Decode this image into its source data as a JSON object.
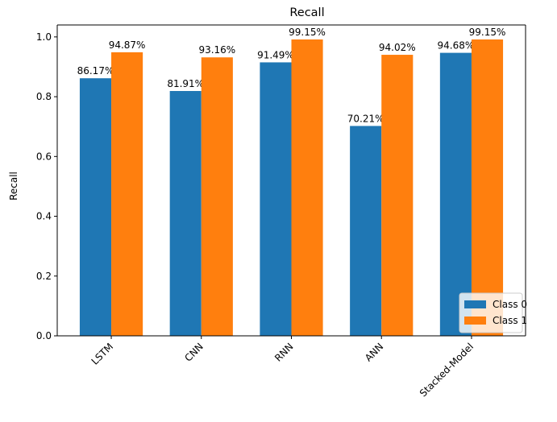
{
  "chart_data": {
    "type": "bar",
    "title": "Recall",
    "xlabel": "",
    "ylabel": "Recall",
    "categories": [
      "LSTM",
      "CNN",
      "RNN",
      "ANN",
      "Stacked-Model"
    ],
    "series": [
      {
        "name": "Class 0",
        "color": "#1f77b4",
        "values": [
          0.8617,
          0.8191,
          0.9149,
          0.7021,
          0.9468
        ],
        "labels": [
          "86.17%",
          "81.91%",
          "91.49%",
          "70.21%",
          "94.68%"
        ]
      },
      {
        "name": "Class 1",
        "color": "#ff7f0e",
        "values": [
          0.9487,
          0.9316,
          0.9915,
          0.9402,
          0.9915
        ],
        "labels": [
          "94.87%",
          "93.16%",
          "99.15%",
          "94.02%",
          "99.15%"
        ]
      }
    ],
    "ylim": [
      0,
      1.04
    ],
    "yticks": [
      "0.0",
      "0.2",
      "0.4",
      "0.6",
      "0.8",
      "1.0"
    ],
    "ytick_values": [
      0,
      0.2,
      0.4,
      0.6,
      0.8,
      1.0
    ],
    "grid": false,
    "legend_position": "lower-right",
    "xtick_rotation": "45-degree"
  }
}
